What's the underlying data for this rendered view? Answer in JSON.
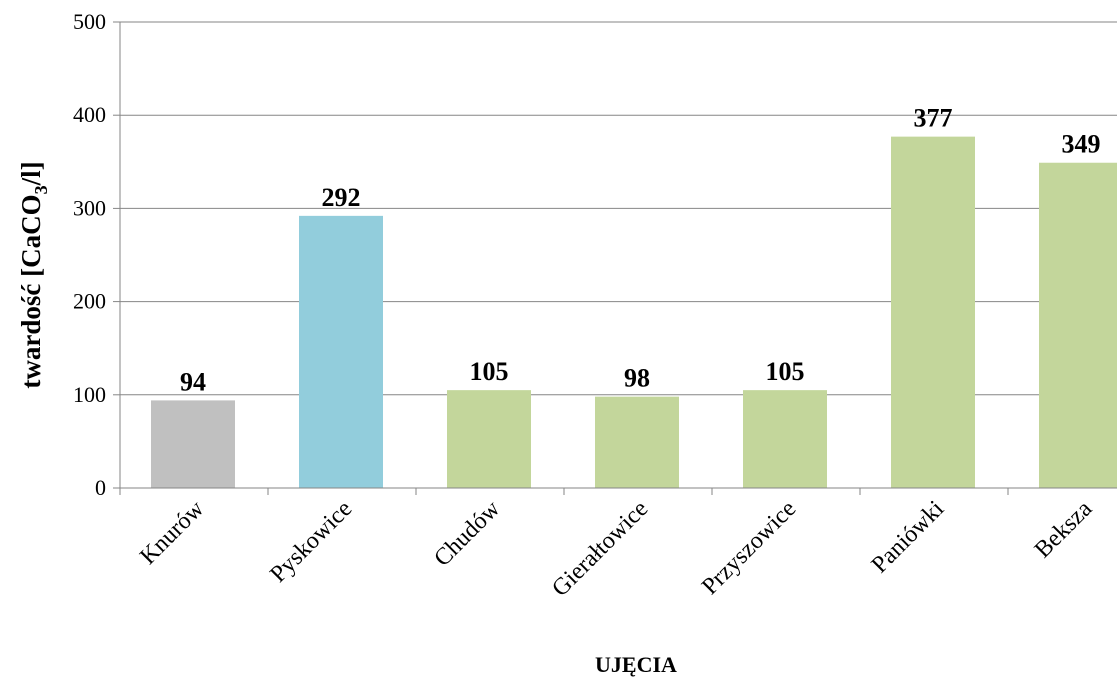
{
  "chart_data": {
    "type": "bar",
    "categories": [
      "Knurów",
      "Pyskowice",
      "Chudów",
      "Gierałtowice",
      "Przyszowice",
      "Paniówki",
      "Beksza"
    ],
    "values": [
      94,
      292,
      105,
      98,
      105,
      377,
      349
    ],
    "colors": [
      "#c0c0c0",
      "#92cddc",
      "#c3d69b",
      "#c3d69b",
      "#c3d69b",
      "#c3d69b",
      "#c3d69b"
    ],
    "xlabel": "UJĘCIA",
    "ylabel_main": "twardość [CaCO",
    "ylabel_sub": "3",
    "ylabel_end": "/l]",
    "ylim": [
      0,
      500
    ],
    "yticks": [
      0,
      100,
      200,
      300,
      400,
      500
    ],
    "grid": true,
    "data_labels": true
  }
}
